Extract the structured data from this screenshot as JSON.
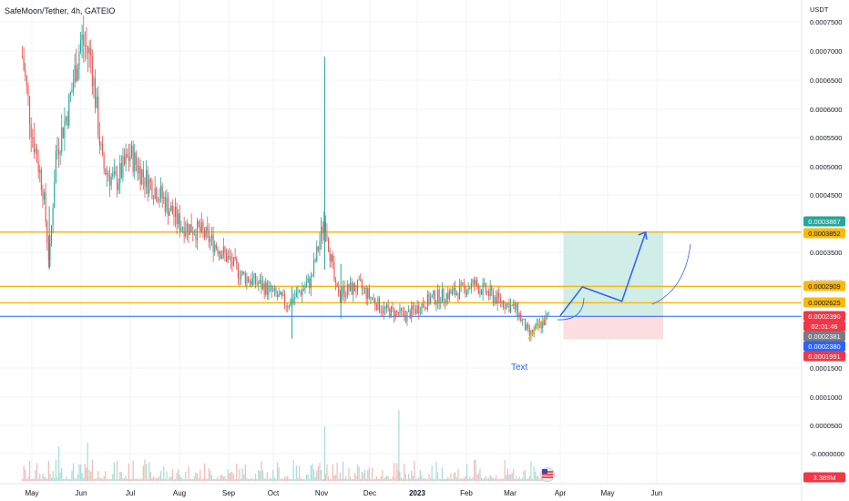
{
  "header": {
    "symbol": "SafeMoon/Tether, 4h, GATEIO"
  },
  "price_axis": {
    "currency": "USDT",
    "ticks": [
      "0.0007500",
      "0.0007000",
      "0.0006500",
      "0.0006000",
      "0.0005500",
      "0.0005000",
      "0.0004500",
      "0.0003500",
      "0.0001500",
      "0.0001000",
      "0.0000500",
      "-0.0000000"
    ]
  },
  "time_axis": {
    "labels": [
      {
        "text": "May",
        "bold": false
      },
      {
        "text": "Jun",
        "bold": false
      },
      {
        "text": "Jul",
        "bold": false
      },
      {
        "text": "Aug",
        "bold": false
      },
      {
        "text": "Sep",
        "bold": false
      },
      {
        "text": "Oct",
        "bold": false
      },
      {
        "text": "Nov",
        "bold": false
      },
      {
        "text": "Dec",
        "bold": false
      },
      {
        "text": "2023",
        "bold": true
      },
      {
        "text": "Feb",
        "bold": false
      },
      {
        "text": "Mar",
        "bold": false
      },
      {
        "text": "Apr",
        "bold": false
      },
      {
        "text": "May",
        "bold": false
      },
      {
        "text": "Jun",
        "bold": false
      }
    ]
  },
  "badges": [
    {
      "label": "0.0003867",
      "bg": "#26a69a",
      "fg": "#ffffff"
    },
    {
      "label": "0.0003852",
      "bg": "#f9b90b",
      "fg": "#131722"
    },
    {
      "label": "0.0002909",
      "bg": "#f9b90b",
      "fg": "#131722"
    },
    {
      "label": "0.0002625",
      "bg": "#f9b90b",
      "fg": "#131722"
    },
    {
      "label": "0.0002390",
      "bg": "#f23645",
      "fg": "#ffffff"
    },
    {
      "label": "02:01:46",
      "bg": "#f23645",
      "fg": "#ffffff"
    },
    {
      "label": "0.0002381",
      "bg": "#787b86",
      "fg": "#ffffff"
    },
    {
      "label": "0.0002380",
      "bg": "#2962ff",
      "fg": "#ffffff"
    },
    {
      "label": "0.0001991",
      "bg": "#f23645",
      "fg": "#ffffff"
    },
    {
      "label": "3.389M",
      "bg": "#f23645",
      "fg": "#ffffff"
    }
  ],
  "annotation": {
    "text": "Text"
  },
  "colors": {
    "up": "#26a69a",
    "down": "#ef5350",
    "level": "#f9b90b",
    "blue_line": "#2962ff",
    "profit_zone": "#d1ede8",
    "loss_zone": "#fcdde0",
    "path": "#2962ff"
  },
  "chart_data": {
    "type": "candlestick",
    "title": "SafeMoon/Tether, 4h, GATEIO",
    "x_range": [
      "2022-04-25",
      "2023-06-10"
    ],
    "y_range": [
      0.0,
      0.000765
    ],
    "horizontal_levels": [
      0.0003852,
      0.0002909,
      0.0002625
    ],
    "current_price_line": 0.000239,
    "trade_setup": {
      "entry": 0.000239,
      "target": 0.0003867,
      "stop": 0.0001991,
      "start": "2023-04-03",
      "end": "2023-06-05"
    },
    "close_approx": [
      {
        "x": "2022-04-25",
        "y": 0.00069
      },
      {
        "x": "2022-05-01",
        "y": 0.00056
      },
      {
        "x": "2022-05-08",
        "y": 0.00046
      },
      {
        "x": "2022-05-12",
        "y": 0.00033
      },
      {
        "x": "2022-05-16",
        "y": 0.00052
      },
      {
        "x": "2022-05-24",
        "y": 0.0006
      },
      {
        "x": "2022-06-01",
        "y": 0.00072
      },
      {
        "x": "2022-06-07",
        "y": 0.00069
      },
      {
        "x": "2022-06-14",
        "y": 0.0005
      },
      {
        "x": "2022-06-22",
        "y": 0.00047
      },
      {
        "x": "2022-07-01",
        "y": 0.00052
      },
      {
        "x": "2022-07-10",
        "y": 0.00048
      },
      {
        "x": "2022-07-20",
        "y": 0.00045
      },
      {
        "x": "2022-08-01",
        "y": 0.0004
      },
      {
        "x": "2022-08-15",
        "y": 0.000385
      },
      {
        "x": "2022-08-25",
        "y": 0.00036
      },
      {
        "x": "2022-09-10",
        "y": 0.00031
      },
      {
        "x": "2022-09-25",
        "y": 0.00029
      },
      {
        "x": "2022-10-10",
        "y": 0.00026
      },
      {
        "x": "2022-10-25",
        "y": 0.0003
      },
      {
        "x": "2022-11-03",
        "y": 0.00041
      },
      {
        "x": "2022-11-10",
        "y": 0.00028
      },
      {
        "x": "2022-11-25",
        "y": 0.00029
      },
      {
        "x": "2022-12-10",
        "y": 0.00025
      },
      {
        "x": "2022-12-25",
        "y": 0.00024
      },
      {
        "x": "2023-01-10",
        "y": 0.00027
      },
      {
        "x": "2023-01-25",
        "y": 0.00028
      },
      {
        "x": "2023-02-06",
        "y": 0.000295
      },
      {
        "x": "2023-02-20",
        "y": 0.00027
      },
      {
        "x": "2023-03-05",
        "y": 0.00025
      },
      {
        "x": "2023-03-13",
        "y": 0.000205
      },
      {
        "x": "2023-03-25",
        "y": 0.000239
      }
    ],
    "projection_path": [
      {
        "x": "2023-04-01",
        "y": 0.00024
      },
      {
        "x": "2023-04-15",
        "y": 0.00029
      },
      {
        "x": "2023-05-10",
        "y": 0.000265
      },
      {
        "x": "2023-05-25",
        "y": 0.000385
      }
    ]
  }
}
